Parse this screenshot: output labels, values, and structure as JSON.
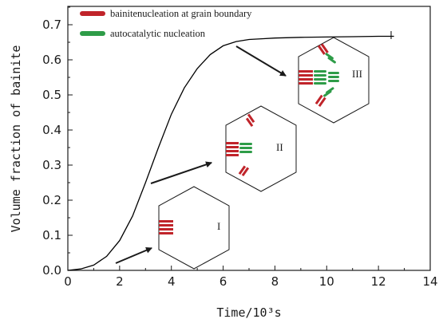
{
  "chart_data": {
    "type": "line",
    "xlabel": "Time/10³s",
    "ylabel": "Volume fraction of bainite",
    "xlim": [
      0,
      14
    ],
    "ylim": [
      0,
      0.75
    ],
    "xticks": [
      "0",
      "2",
      "4",
      "6",
      "8",
      "10",
      "12",
      "14"
    ],
    "yticks": [
      "0.0",
      "0.1",
      "0.2",
      "0.3",
      "0.4",
      "0.5",
      "0.6",
      "0.7"
    ],
    "grid": false,
    "legend_position": "top-left",
    "series": [
      {
        "color": "#000000",
        "x": [
          0,
          0.5,
          1.0,
          1.5,
          2.0,
          2.5,
          3.0,
          3.5,
          4.0,
          4.5,
          5.0,
          5.5,
          6.0,
          6.5,
          7.0,
          7.5,
          8.0,
          9.0,
          10.0,
          11.0,
          12.0,
          12.6
        ],
        "y": [
          0.0,
          0.004,
          0.015,
          0.04,
          0.085,
          0.155,
          0.25,
          0.35,
          0.445,
          0.52,
          0.575,
          0.615,
          0.64,
          0.652,
          0.658,
          0.66,
          0.662,
          0.664,
          0.665,
          0.666,
          0.667,
          0.667
        ]
      }
    ],
    "legend": [
      {
        "label": "bainitenucleation at grain boundary",
        "color": "#c0242a"
      },
      {
        "label": "autocatalytic nucleation",
        "color": "#2e9c48"
      }
    ],
    "annotations": [
      {
        "label": "I",
        "point": [
          2.1,
          0.03
        ]
      },
      {
        "label": "II",
        "point": [
          3.3,
          0.315
        ]
      },
      {
        "label": "III",
        "point": [
          6.5,
          0.628
        ]
      }
    ]
  },
  "colors": {
    "grain_boundary": "#c0242a",
    "autocatalytic": "#2e9c48"
  }
}
